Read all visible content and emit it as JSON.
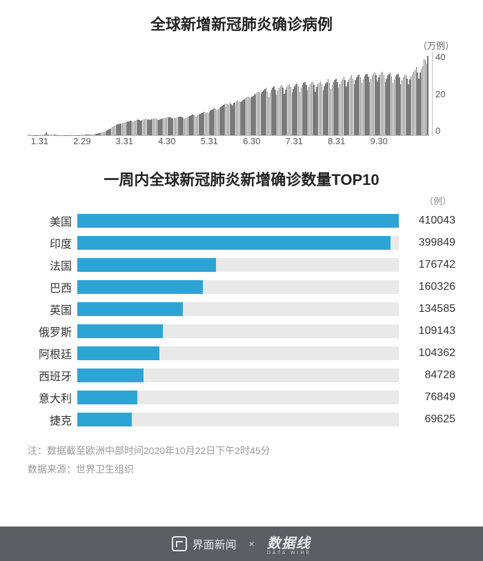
{
  "chart1": {
    "type": "bar",
    "title": "全球新增新冠肺炎确诊病例",
    "y_unit_label": "（万例）",
    "y_ticks": [
      40,
      20,
      0
    ],
    "ylim_max": 44,
    "x_ticks": [
      "1.31",
      "2.29",
      "3.31",
      "4.30",
      "5.31",
      "6.30",
      "7.31",
      "8.31",
      "9.30"
    ],
    "bar_color": "#7a7a7a",
    "axis_color": "#bbbbbb",
    "tick_font_color": "#555555",
    "title_fontsize": 22,
    "tick_fontsize": 13,
    "values": [
      0.2,
      0.2,
      0.2,
      0.1,
      0.1,
      0.1,
      0.1,
      0.1,
      0.1,
      0.1,
      0.3,
      0.2,
      0.2,
      0.2,
      1.5,
      0.2,
      0.2,
      0.2,
      0.2,
      0.2,
      0.2,
      0.2,
      0.05,
      0.05,
      0.05,
      0.05,
      0.05,
      0.05,
      0.1,
      0.1,
      0.1,
      0.1,
      0.1,
      0.1,
      0.1,
      0.1,
      0.1,
      0.1,
      0.1,
      0.1,
      0.1,
      0.2,
      0.2,
      0.2,
      0.2,
      0.3,
      0.3,
      0.3,
      0.4,
      0.4,
      0.5,
      0.6,
      0.7,
      0.8,
      1.0,
      1.2,
      1.4,
      1.6,
      1.8,
      2.0,
      2.3,
      2.6,
      3.0,
      3.4,
      3.8,
      4.2,
      4.6,
      5.0,
      5.4,
      5.8,
      6.0,
      6.1,
      6.2,
      6.4,
      6.6,
      6.8,
      7.0,
      7.2,
      7.4,
      7.6,
      7.5,
      7.3,
      7.6,
      7.8,
      8.0,
      8.2,
      8.0,
      7.8,
      8.0,
      8.2,
      8.4,
      8.6,
      8.5,
      8.3,
      8.1,
      8.4,
      8.6,
      8.8,
      9.0,
      8.8,
      8.5,
      8.1,
      8.4,
      8.6,
      8.8,
      9.0,
      9.2,
      9.3,
      9.4,
      9.5,
      9.3,
      9.0,
      8.7,
      9.0,
      9.2,
      9.4,
      9.6,
      9.8,
      10.0,
      9.5,
      9.2,
      8.8,
      9.2,
      9.5,
      9.8,
      10.2,
      10.6,
      11.0,
      10.8,
      10.4,
      10.0,
      10.4,
      10.8,
      11.2,
      11.6,
      12.0,
      12.4,
      12.0,
      11.5,
      12.0,
      12.5,
      13.0,
      13.5,
      14.0,
      14.5,
      14.0,
      13.5,
      14.0,
      14.5,
      15.0,
      15.5,
      16.0,
      16.4,
      16.8,
      16.5,
      16.0,
      17.5,
      16.2,
      15.8,
      17.0,
      17.5,
      18.0,
      18.5,
      18.0,
      17.5,
      18.0,
      18.5,
      19.0,
      19.5,
      20.0,
      20.5,
      20.0,
      19.5,
      20.2,
      20.8,
      21.4,
      22.0,
      22.6,
      23.0,
      22.5,
      22.0,
      22.8,
      23.5,
      24.2,
      25.0,
      23.0,
      20.5,
      22.5,
      24.0,
      25.2,
      26.0,
      24.0,
      21.5,
      23.5,
      25.0,
      26.0,
      26.5,
      25.0,
      22.0,
      24.0,
      25.5,
      26.5,
      27.0,
      25.5,
      22.5,
      24.5,
      26.0,
      27.0,
      27.5,
      26.0,
      23.0,
      25.0,
      26.5,
      27.5,
      28.0,
      26.5,
      23.5,
      25.5,
      27.0,
      28.0,
      28.5,
      26.5,
      23.0,
      25.5,
      27.0,
      27.8,
      28.5,
      26.8,
      23.5,
      25.8,
      27.2,
      28.0,
      29.8,
      27.5,
      24.5,
      26.5,
      28.0,
      29.0,
      30.0,
      28.0,
      25.0,
      27.0,
      28.5,
      29.5,
      31.0,
      29.0,
      26.0,
      28.0,
      29.5,
      30.5,
      31.5,
      30.0,
      27.0,
      29.0,
      30.5,
      31.5,
      32.0,
      30.5,
      27.5,
      29.5,
      31.0,
      32.0,
      32.5,
      31.0,
      28.0,
      30.0,
      31.5,
      32.5,
      33.0,
      31.5,
      28.5,
      30.5,
      32.0,
      33.0,
      33.5,
      31.5,
      28.0,
      30.0,
      31.5,
      32.5,
      33.0,
      31.0,
      27.5,
      29.5,
      31.0,
      32.0,
      32.5,
      30.5,
      27.0,
      29.0,
      30.5,
      31.5,
      32.0,
      30.0,
      27.0,
      29.5,
      31.0,
      32.0,
      33.5,
      34.5,
      36.0,
      33.0,
      30.0,
      33.0,
      35.0,
      36.5,
      40.0,
      39.5,
      38.0,
      42.0
    ]
  },
  "chart2": {
    "type": "hbar",
    "title": "一周内全球新冠肺炎新增确诊数量TOP10",
    "y_unit_label": "（例）",
    "bar_color": "#2ca5d4",
    "track_color": "#e9e9e9",
    "label_fontsize": 16,
    "title_fontsize": 22,
    "max_value": 410043,
    "rows": [
      {
        "label": "美国",
        "value": 410043
      },
      {
        "label": "印度",
        "value": 399849
      },
      {
        "label": "法国",
        "value": 176742
      },
      {
        "label": "巴西",
        "value": 160326
      },
      {
        "label": "英国",
        "value": 134585
      },
      {
        "label": "俄罗斯",
        "value": 109143
      },
      {
        "label": "阿根廷",
        "value": 104362
      },
      {
        "label": "西班牙",
        "value": 84728
      },
      {
        "label": "意大利",
        "value": 76849
      },
      {
        "label": "捷克",
        "value": 69625
      }
    ]
  },
  "footnote": {
    "line1": "注：数据截至欧洲中部时间2020年10月22日下午2时45分",
    "line2": "数据来源：世界卫生组织",
    "color": "#999999",
    "fontsize": 14
  },
  "footer": {
    "left_text": "界面新闻",
    "separator": "×",
    "right_text": "数据线",
    "right_sub": "DATA WIRE",
    "background_color": "#5b5f64",
    "text_color": "#e8e8e8"
  }
}
